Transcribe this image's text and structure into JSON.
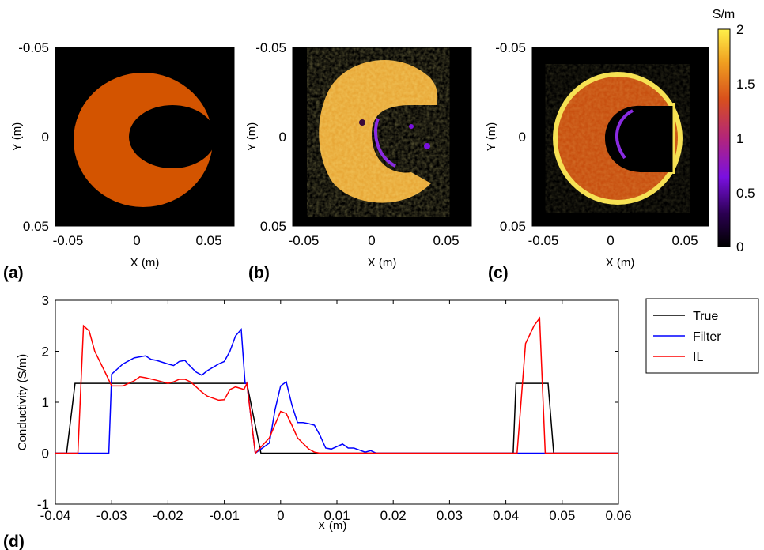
{
  "colors": {
    "true": "#000000",
    "filter": "#0000ff",
    "il": "#ff0000",
    "disk": "#d35400",
    "background": "#000000"
  },
  "images": [
    {
      "label": "(a)",
      "xlabel": "X (m)",
      "ylabel": "Y (m)",
      "xticks": [
        "-0.05",
        "0",
        "0.05"
      ],
      "yticks": [
        "-0.05",
        "0",
        "0.05"
      ]
    },
    {
      "label": "(b)",
      "xlabel": "X (m)",
      "ylabel": "Y (m)",
      "xticks": [
        "-0.05",
        "0",
        "0.05"
      ],
      "yticks": [
        "-0.05",
        "0",
        "0.05"
      ]
    },
    {
      "label": "(c)",
      "xlabel": "X (m)",
      "ylabel": "Y (m)",
      "xticks": [
        "-0.05",
        "0",
        "0.05"
      ],
      "yticks": [
        "-0.05",
        "0",
        "0.05"
      ]
    }
  ],
  "colorbar": {
    "unit": "S/m",
    "ticks": [
      "2",
      "1.5",
      "1",
      "0.5",
      "0"
    ],
    "range": [
      0,
      2
    ],
    "colormap": "hot-purple"
  },
  "chart_data": {
    "type": "line",
    "panel_label": "(d)",
    "xlabel": "X (m)",
    "ylabel": "Conductivity (S/m)",
    "xlim": [
      -0.04,
      0.06
    ],
    "ylim": [
      -1,
      3
    ],
    "xticks": [
      "-0.04",
      "-0.03",
      "-0.02",
      "-0.01",
      "0",
      "0.01",
      "0.02",
      "0.03",
      "0.04",
      "0.05",
      "0.06"
    ],
    "yticks": [
      "3",
      "2",
      "1",
      "0",
      "-1"
    ],
    "legend_position": "outside-right",
    "series": [
      {
        "name": "True",
        "color": "#000000",
        "x": [
          -0.04,
          -0.038,
          -0.0365,
          -0.006,
          -0.0035,
          0.0413,
          0.0418,
          0.0475,
          0.0485,
          0.06
        ],
        "y": [
          0,
          0,
          1.37,
          1.37,
          0,
          0,
          1.37,
          1.37,
          0,
          0
        ]
      },
      {
        "name": "Filter",
        "color": "#0000ff",
        "x": [
          -0.04,
          -0.0335,
          -0.0305,
          -0.03,
          -0.028,
          -0.026,
          -0.024,
          -0.023,
          -0.022,
          -0.02,
          -0.019,
          -0.018,
          -0.017,
          -0.016,
          -0.015,
          -0.014,
          -0.013,
          -0.011,
          -0.01,
          -0.009,
          -0.008,
          -0.007,
          -0.0063,
          -0.006,
          -0.0045,
          -0.002,
          -0.001,
          0.0,
          0.001,
          0.002,
          0.003,
          0.004,
          0.005,
          0.006,
          0.007,
          0.008,
          0.009,
          0.011,
          0.012,
          0.013,
          0.014,
          0.015,
          0.016,
          0.017,
          0.042,
          0.044,
          0.046,
          0.047,
          0.06
        ],
        "y": [
          0,
          0,
          0,
          1.55,
          1.75,
          1.87,
          1.91,
          1.84,
          1.82,
          1.75,
          1.72,
          1.8,
          1.82,
          1.7,
          1.59,
          1.53,
          1.62,
          1.75,
          1.8,
          2.0,
          2.3,
          2.43,
          1.37,
          1.37,
          0,
          0.2,
          0.85,
          1.32,
          1.4,
          0.95,
          0.6,
          0.6,
          0.58,
          0.55,
          0.35,
          0.1,
          0.08,
          0.18,
          0.1,
          0.1,
          0.06,
          0.02,
          0.05,
          0,
          0,
          0,
          0,
          0,
          0
        ]
      },
      {
        "name": "IL",
        "color": "#ff0000",
        "x": [
          -0.04,
          -0.036,
          -0.035,
          -0.034,
          -0.033,
          -0.031,
          -0.03,
          -0.028,
          -0.026,
          -0.025,
          -0.024,
          -0.022,
          -0.02,
          -0.019,
          -0.018,
          -0.017,
          -0.016,
          -0.015,
          -0.014,
          -0.013,
          -0.011,
          -0.01,
          -0.009,
          -0.008,
          -0.0065,
          -0.006,
          -0.0045,
          -0.002,
          0.0,
          0.001,
          0.002,
          0.003,
          0.005,
          0.006,
          0.007,
          0.042,
          0.0435,
          0.045,
          0.046,
          0.047,
          0.06
        ],
        "y": [
          0,
          0,
          2.5,
          2.4,
          2.0,
          1.55,
          1.32,
          1.32,
          1.42,
          1.5,
          1.48,
          1.43,
          1.37,
          1.4,
          1.45,
          1.45,
          1.4,
          1.3,
          1.2,
          1.12,
          1.04,
          1.05,
          1.25,
          1.3,
          1.25,
          1.37,
          0,
          0.3,
          0.82,
          0.78,
          0.55,
          0.3,
          0.08,
          0.02,
          0,
          0,
          2.15,
          2.5,
          2.65,
          0,
          0
        ]
      }
    ]
  }
}
